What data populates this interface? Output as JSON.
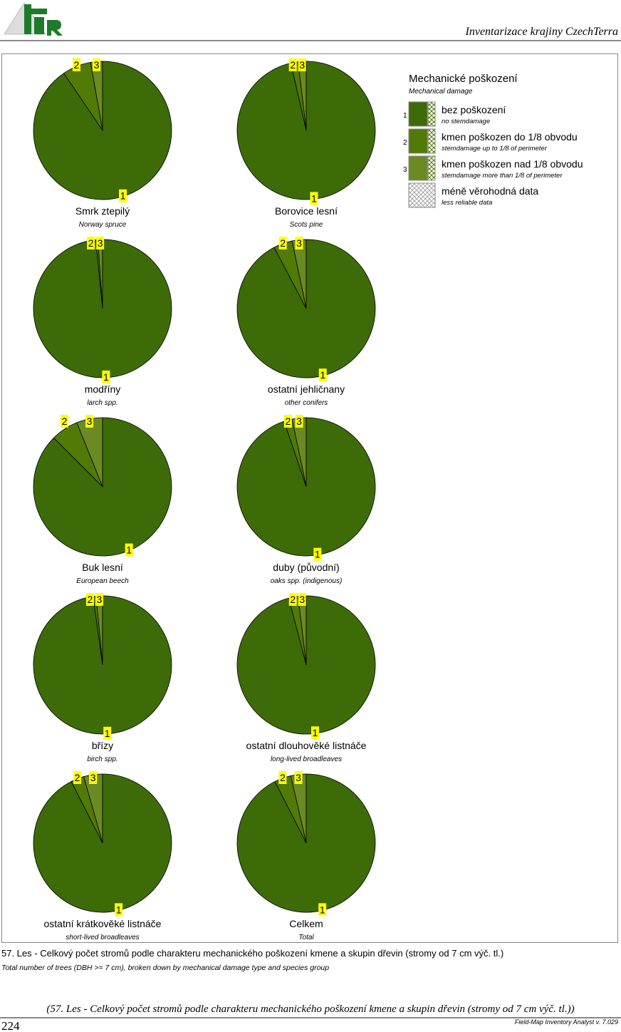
{
  "header": {
    "title": "Inventarizace krajiny CzechTerra",
    "logo_text": "IFER"
  },
  "legend": {
    "title": "Mechanické poškození",
    "subtitle": "Mechanical damage",
    "items": [
      {
        "num": "1",
        "label": "bez poškození",
        "sub": "no stemdamage",
        "color": "#3d6b07"
      },
      {
        "num": "2",
        "label": "kmen poškozen do 1/8 obvodu",
        "sub": "stemdamage up to 1/8 of perimeter",
        "color": "#517a06"
      },
      {
        "num": "3",
        "label": "kmen poškozen nad 1/8 obvodu",
        "sub": "stemdamage more than 1/8 of perimeter",
        "color": "#6b8a24"
      },
      {
        "num": "",
        "label": "méně věrohodná data",
        "sub": "less reliable data",
        "color": "hatch"
      }
    ]
  },
  "chart_data": [
    {
      "type": "pie",
      "title": "Smrk ztepilý",
      "subtitle": "Norway spruce",
      "labels": [
        "1",
        "2",
        "3"
      ],
      "values": [
        90.5,
        6.7,
        2.8
      ]
    },
    {
      "type": "pie",
      "title": "Borovice lesní",
      "subtitle": "Scots pine",
      "labels": [
        "1",
        "2",
        "3"
      ],
      "values": [
        96.4,
        1.7,
        1.9
      ]
    },
    {
      "type": "pie",
      "title": "modříny",
      "subtitle": "larch spp.",
      "labels": [
        "1",
        "2",
        "3"
      ],
      "values": [
        98.4,
        0.5,
        1.1
      ]
    },
    {
      "type": "pie",
      "title": "ostatní jehličnany",
      "subtitle": "other conifers",
      "labels": [
        "1",
        "2",
        "3"
      ],
      "values": [
        92.3,
        4.4,
        3.3
      ]
    },
    {
      "type": "pie",
      "title": "Buk lesní",
      "subtitle": "European beech",
      "labels": [
        "1",
        "2",
        "3"
      ],
      "values": [
        87.5,
        6.4,
        6.1
      ]
    },
    {
      "type": "pie",
      "title": "duby (původní)",
      "subtitle": "oaks spp. (indigenous)",
      "labels": [
        "1",
        "2",
        "3"
      ],
      "values": [
        94.8,
        1.9,
        3.3
      ]
    },
    {
      "type": "pie",
      "title": "břízy",
      "subtitle": "birch spp.",
      "labels": [
        "1",
        "2",
        "3"
      ],
      "values": [
        97.8,
        0.7,
        1.5
      ]
    },
    {
      "type": "pie",
      "title": "ostatní dlouhověké listnáče",
      "subtitle": "long-lived broadleaves",
      "labels": [
        "1",
        "2",
        "3"
      ],
      "values": [
        95.9,
        2.2,
        1.9
      ]
    },
    {
      "type": "pie",
      "title": "ostatní krátkověké listnáče",
      "subtitle": "short-lived broadleaves",
      "labels": [
        "1",
        "2",
        "3"
      ],
      "values": [
        92.5,
        3.1,
        4.4
      ]
    },
    {
      "type": "pie",
      "title": "Celkem",
      "subtitle": "Total",
      "labels": [
        "1",
        "2",
        "3"
      ],
      "values": [
        92.5,
        3.9,
        3.6
      ]
    }
  ],
  "caption": {
    "cz": "57. Les - Celkový počet stromů podle charakteru mechanického poškození kmene a skupin dřevin (stromy od 7 cm výč. tl.)",
    "en": "Total number of trees (DBH >= 7 cm), broken down by mechanical damage type and species group",
    "footer": "(57. Les - Celkový počet stromů podle charakteru mechanického poškození kmene a skupin dřevin (stromy od 7 cm výč. tl.))"
  },
  "footer": {
    "page": "224",
    "version": "Field-Map Inventory Analyst v. 7.029"
  }
}
